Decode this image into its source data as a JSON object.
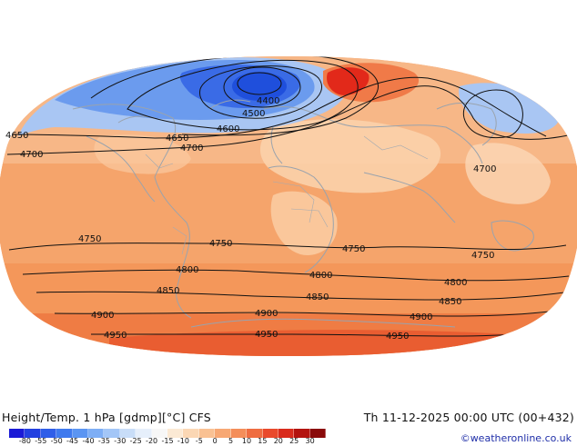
{
  "map": {
    "contours": [
      {
        "value": 4400,
        "label": "4400"
      },
      {
        "value": 4500,
        "label": "4500"
      },
      {
        "value": 4600,
        "label": "4600"
      },
      {
        "value": 4650,
        "label": "4650"
      },
      {
        "value": 4700,
        "label": "4700"
      },
      {
        "value": 4750,
        "label": "4750"
      },
      {
        "value": 4800,
        "label": "4800"
      },
      {
        "value": 4850,
        "label": "4850"
      },
      {
        "value": 4900,
        "label": "4900"
      },
      {
        "value": 4950,
        "label": "4950"
      }
    ],
    "colors": {
      "ocean_warm": "#f5a56c",
      "deep_cold": "#2f62e8",
      "cold": "#5d90ee",
      "cool": "#a8c6f2",
      "pale": "#fde3c8",
      "hot": "#e8321a",
      "coastline": "#9aa3ad"
    }
  },
  "footer": {
    "title": "Height/Temp. 1 hPa [gdmp][°C] CFS",
    "datetime": "Th 11-12-2025 00:00 UTC (00+432)",
    "credit": "©weatheronline.co.uk"
  },
  "colorbar": {
    "labels": [
      "-80",
      "-55",
      "-50",
      "-45",
      "-40",
      "-35",
      "-30",
      "-25",
      "-20",
      "-15",
      "-10",
      "-5",
      "0",
      "5",
      "10",
      "15",
      "20",
      "25",
      "30"
    ],
    "colors": [
      "#1a1ad6",
      "#2340e0",
      "#2f5ee8",
      "#3f7aee",
      "#5b95f2",
      "#7eaef5",
      "#a3c6f7",
      "#c8ddf8",
      "#e6effb",
      "#f7f7f7",
      "#fbe9d4",
      "#fbd7b4",
      "#f9c193",
      "#f7a874",
      "#f48e5a",
      "#ef6d41",
      "#e94a2c",
      "#d92b1c",
      "#b3130f",
      "#8a0a0a"
    ]
  }
}
